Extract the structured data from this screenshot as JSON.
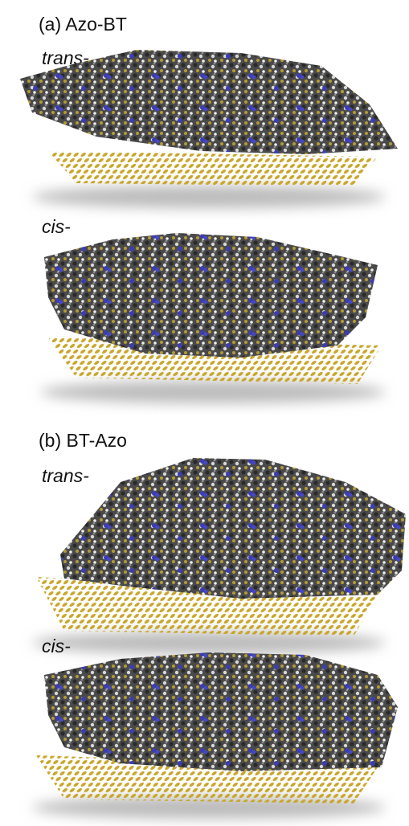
{
  "panels": [
    {
      "title": "(a) Azo-BT",
      "structures": [
        {
          "label": "trans-"
        },
        {
          "label": "cis-"
        }
      ]
    },
    {
      "title": "(b) BT-Azo",
      "structures": [
        {
          "label": "trans-"
        },
        {
          "label": "cis-"
        }
      ]
    }
  ]
}
